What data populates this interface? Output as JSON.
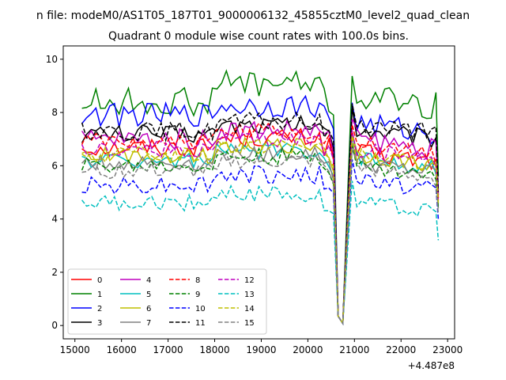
{
  "chart_data": {
    "type": "line",
    "suptitle": "n file: modeM0/AS1T05_187T01_9000006132_45855cztM0_level2_quad_clean",
    "title": "Quadrant 0 module wise count rates with 100.0s bins.",
    "xlabel": "",
    "ylabel": "",
    "offset_label": "+4.487e8",
    "xlim": [
      14750,
      23150
    ],
    "ylim": [
      -0.5,
      10.5
    ],
    "xticks": [
      15000,
      16000,
      17000,
      18000,
      19000,
      20000,
      21000,
      22000,
      23000
    ],
    "xtick_labels": [
      "15000",
      "16000",
      "17000",
      "18000",
      "19000",
      "20000",
      "21000",
      "22000",
      "23000"
    ],
    "yticks": [
      0,
      2,
      4,
      6,
      8,
      10
    ],
    "ytick_labels": [
      "0",
      "2",
      "4",
      "6",
      "8",
      "10"
    ],
    "grid": false,
    "legend_position": "lower-left",
    "legend_columns": 4,
    "shape": {
      "x_start": 15150,
      "x_step": 100,
      "gap_start": 20650,
      "gap_end": 20850,
      "x_end": 22800,
      "pre_gap": [
        20450,
        20550
      ],
      "gap_values": [
        0.35,
        0.08
      ]
    },
    "series": [
      {
        "name": "0",
        "color": "#ff0000",
        "dash": "solid",
        "pre_level": 6.7,
        "post_level": 6.5,
        "end_value": 4.8,
        "amp": 0.35
      },
      {
        "name": "1",
        "color": "#008000",
        "dash": "solid",
        "pre_level": 8.4,
        "post_level": 8.6,
        "end_value": 5.6,
        "amp": 0.55
      },
      {
        "name": "2",
        "color": "#0000ff",
        "dash": "solid",
        "pre_level": 7.9,
        "post_level": 7.6,
        "end_value": 5.1,
        "amp": 0.45
      },
      {
        "name": "3",
        "color": "#000000",
        "dash": "solid",
        "pre_level": 7.2,
        "post_level": 7.4,
        "end_value": 4.9,
        "amp": 0.35
      },
      {
        "name": "4",
        "color": "#bf00bf",
        "dash": "solid",
        "pre_level": 7.0,
        "post_level": 7.0,
        "end_value": 4.9,
        "amp": 0.4
      },
      {
        "name": "5",
        "color": "#00bfbf",
        "dash": "solid",
        "pre_level": 6.2,
        "post_level": 6.3,
        "end_value": 4.5,
        "amp": 0.3
      },
      {
        "name": "6",
        "color": "#bfbf00",
        "dash": "solid",
        "pre_level": 6.4,
        "post_level": 6.4,
        "end_value": 4.7,
        "amp": 0.3
      },
      {
        "name": "7",
        "color": "#808080",
        "dash": "solid",
        "pre_level": 6.1,
        "post_level": 6.1,
        "end_value": 4.4,
        "amp": 0.3
      },
      {
        "name": "8",
        "color": "#ff0000",
        "dash": "dashed",
        "pre_level": 6.9,
        "post_level": 6.8,
        "end_value": 4.8,
        "amp": 0.35
      },
      {
        "name": "9",
        "color": "#008000",
        "dash": "dashed",
        "pre_level": 6.0,
        "post_level": 6.0,
        "end_value": 4.4,
        "amp": 0.3
      },
      {
        "name": "10",
        "color": "#0000ff",
        "dash": "dashed",
        "pre_level": 5.3,
        "post_level": 5.5,
        "end_value": 4.0,
        "amp": 0.35
      },
      {
        "name": "11",
        "color": "#000000",
        "dash": "dashed",
        "pre_level": 7.3,
        "post_level": 7.6,
        "end_value": 5.0,
        "amp": 0.35
      },
      {
        "name": "12",
        "color": "#bf00bf",
        "dash": "dashed",
        "pre_level": 6.6,
        "post_level": 6.6,
        "end_value": 4.7,
        "amp": 0.3
      },
      {
        "name": "13",
        "color": "#00bfbf",
        "dash": "dashed",
        "pre_level": 4.6,
        "post_level": 4.7,
        "end_value": 3.2,
        "amp": 0.3
      },
      {
        "name": "14",
        "color": "#bfbf00",
        "dash": "dashed",
        "pre_level": 6.4,
        "post_level": 6.4,
        "end_value": 4.6,
        "amp": 0.3
      },
      {
        "name": "15",
        "color": "#808080",
        "dash": "dashed",
        "pre_level": 5.8,
        "post_level": 5.9,
        "end_value": 4.2,
        "amp": 0.3
      }
    ]
  }
}
